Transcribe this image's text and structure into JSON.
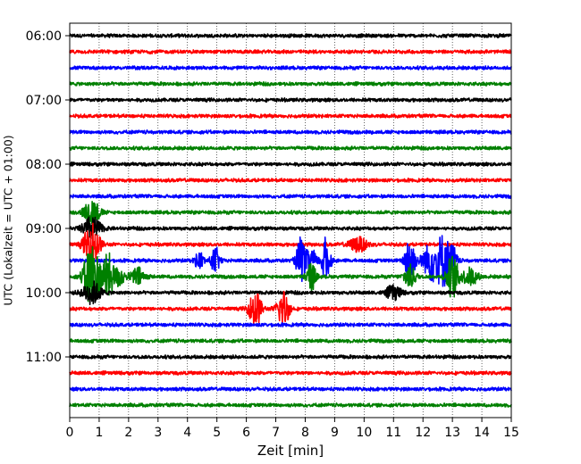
{
  "chart_data": {
    "type": "line",
    "title": "",
    "xlabel": "Zeit  [min]",
    "ylabel": "UTC (Lokalzeit = UTC + 01:00)",
    "xlim": [
      0,
      15
    ],
    "x_ticks": [
      "0",
      "1",
      "2",
      "3",
      "4",
      "5",
      "6",
      "7",
      "8",
      "9",
      "10",
      "11",
      "12",
      "13",
      "14",
      "15"
    ],
    "y_ticks": [
      {
        "label": "06:00",
        "trace_index": 0
      },
      {
        "label": "07:00",
        "trace_index": 4
      },
      {
        "label": "08:00",
        "trace_index": 8
      },
      {
        "label": "09:00",
        "trace_index": 12
      },
      {
        "label": "10:00",
        "trace_index": 16
      },
      {
        "label": "11:00",
        "trace_index": 20
      }
    ],
    "grid": "vertical dotted",
    "minutes_per_trace": 15,
    "trace_colors": [
      "#000000",
      "#ff0000",
      "#0000ff",
      "#008000"
    ],
    "traces": [
      {
        "start": "06:00",
        "color_index": 0,
        "events": []
      },
      {
        "start": "06:15",
        "color_index": 1,
        "events": []
      },
      {
        "start": "06:30",
        "color_index": 2,
        "events": []
      },
      {
        "start": "06:45",
        "color_index": 3,
        "events": []
      },
      {
        "start": "07:00",
        "color_index": 0,
        "events": []
      },
      {
        "start": "07:15",
        "color_index": 1,
        "events": []
      },
      {
        "start": "07:30",
        "color_index": 2,
        "events": []
      },
      {
        "start": "07:45",
        "color_index": 3,
        "events": []
      },
      {
        "start": "08:00",
        "color_index": 0,
        "events": []
      },
      {
        "start": "08:15",
        "color_index": 1,
        "events": []
      },
      {
        "start": "08:30",
        "color_index": 2,
        "events": []
      },
      {
        "start": "08:45",
        "color_index": 3,
        "events": [
          [
            0.75,
            1.0,
            0.25
          ]
        ]
      },
      {
        "start": "09:00",
        "color_index": 0,
        "events": [
          [
            0.75,
            0.8,
            0.3
          ]
        ]
      },
      {
        "start": "09:15",
        "color_index": 1,
        "events": [
          [
            0.75,
            1.6,
            0.25
          ],
          [
            9.8,
            0.5,
            0.3
          ]
        ]
      },
      {
        "start": "09:30",
        "color_index": 2,
        "events": [
          [
            4.4,
            0.6,
            0.15
          ],
          [
            4.95,
            0.9,
            0.15
          ],
          [
            7.85,
            1.6,
            0.15
          ],
          [
            8.2,
            1.0,
            0.15
          ],
          [
            8.7,
            1.6,
            0.15
          ],
          [
            11.55,
            2.2,
            0.15
          ],
          [
            12.3,
            1.4,
            0.3
          ],
          [
            12.7,
            1.6,
            0.2
          ],
          [
            13.0,
            1.0,
            0.15
          ]
        ]
      },
      {
        "start": "09:45",
        "color_index": 3,
        "events": [
          [
            0.75,
            2.5,
            0.25
          ],
          [
            1.3,
            1.6,
            0.2
          ],
          [
            1.7,
            0.7,
            0.15
          ],
          [
            2.3,
            0.6,
            0.25
          ],
          [
            8.2,
            1.0,
            0.15
          ],
          [
            11.55,
            0.8,
            0.2
          ],
          [
            13.0,
            1.5,
            0.2
          ],
          [
            13.6,
            0.6,
            0.25
          ]
        ]
      },
      {
        "start": "10:00",
        "color_index": 0,
        "events": [
          [
            0.75,
            0.8,
            0.3
          ],
          [
            11.0,
            0.5,
            0.25
          ]
        ]
      },
      {
        "start": "10:15",
        "color_index": 1,
        "events": [
          [
            6.3,
            1.3,
            0.2
          ],
          [
            7.25,
            1.3,
            0.2
          ]
        ]
      },
      {
        "start": "10:30",
        "color_index": 2,
        "events": []
      },
      {
        "start": "10:45",
        "color_index": 3,
        "events": []
      },
      {
        "start": "11:00",
        "color_index": 0,
        "events": []
      },
      {
        "start": "11:15",
        "color_index": 1,
        "events": []
      },
      {
        "start": "11:30",
        "color_index": 2,
        "events": []
      },
      {
        "start": "11:45",
        "color_index": 3,
        "events": []
      }
    ]
  }
}
